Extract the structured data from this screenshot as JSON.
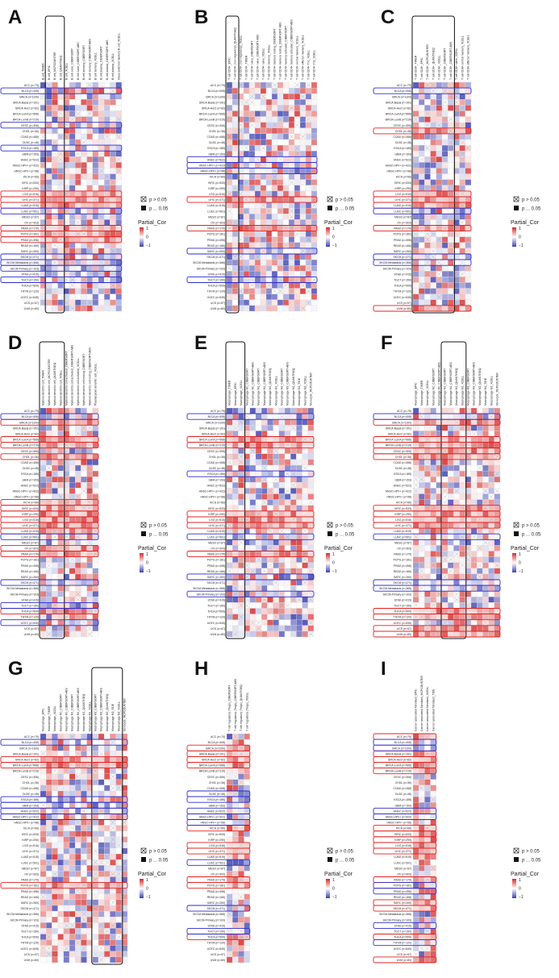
{
  "figure": {
    "panels": [
      "A",
      "B",
      "C",
      "D",
      "E",
      "F",
      "G",
      "H",
      "I"
    ]
  },
  "legend": {
    "ns_label": "p > 0.05",
    "sig_label": "p ... 0.05",
    "title": "Partial_Cor",
    "ticks": [
      "1",
      "0",
      "−1"
    ],
    "low_color": "#3b3fb0",
    "mid_color": "#ffffff",
    "high_color": "#d62828"
  },
  "colors": {
    "red_box": "#e02020",
    "blue_box": "#2a2ad0",
    "black_box": "#111111"
  },
  "chart_data": [
    {
      "panel": "A",
      "type": "heatmap",
      "columns": [
        "B cell_TIMER",
        "B cell_EPIC",
        "B cell_MCPCOUNTER",
        "B cell_QUANTISEQ",
        "B cell_XCELL",
        "B cell naive_CIBERSORT",
        "B cell naive_CIBERSORT-ABS",
        "B cell memory_CIBERSORT",
        "B cell memory_CIBERSORT-ABS",
        "B cell memory_XCELL",
        "B cell plasma_CIBERSORT",
        "B cell plasma_CIBERSORT-ABS",
        "B cell plasma_XCELL",
        "Class-switched memory B cell_XCELL"
      ],
      "rows": [
        "ACC (n=79)",
        "BLCA (n=408)",
        "BRCA (n=1100)",
        "BRCA-Basal (n=191)",
        "BRCA-Her2 (n=82)",
        "BRCA-LumA (n=568)",
        "BRCA-LumB (n=219)",
        "CESC (n=306)",
        "CHOL (n=36)",
        "COAD (n=458)",
        "DLBC (n=48)",
        "ESCA (n=185)",
        "GBM (n=153)",
        "HNSC (n=522)",
        "HNSC-HPV+ (n=422)",
        "HNSC-HPV+ (n=98)",
        "KICH (n=66)",
        "KIRC (n=533)",
        "KIRP (n=290)",
        "LGG (n=516)",
        "LIHC (n=371)",
        "LUAD (n=515)",
        "LUSC (n=501)",
        "MESO (n=87)",
        "OV (n=303)",
        "PAAD (n=179)",
        "PCPG (n=181)",
        "PRAD (n=498)",
        "READ (n=166)",
        "SARC (n=260)",
        "SKCM (n=471)",
        "SKCM-Metastasis (n=368)",
        "SKCM-Primary (n=103)",
        "STAD (n=415)",
        "TGCT (n=150)",
        "THCA (n=509)",
        "THYM (n=120)",
        "UCEC (n=545)",
        "UCS (n=57)",
        "UVM (n=80)"
      ],
      "highlight_cols": [
        1,
        3
      ],
      "red_rows": [
        19,
        20,
        21,
        25,
        26,
        27
      ],
      "blue_rows": [
        1,
        7,
        11,
        22,
        30,
        31,
        32,
        34
      ],
      "seed": 11
    },
    {
      "panel": "B",
      "type": "heatmap",
      "columns": [
        "T cell CD4+_EPIC",
        "T cell CD4+ (non-regulatory)_QUANTISEQ",
        "T cell CD4+ (non-regulatory)_XCELL",
        "T cell CD4+_TIMER",
        "T cell CD4+ naive_CIBERSORT",
        "T cell CD4+ naive_CIBERSORT-ABS",
        "T cell CD4+ naive_XCELL",
        "T cell CD4+ memory_XCELL",
        "T cell CD4+ memory resting_CIBERSORT",
        "T cell CD4+ memory resting_CIBERSORT-ABS",
        "T cell CD4+ memory activated_CIBERSORT",
        "T cell CD4+ memory activated_CIBERSORT-ABS",
        "T cell CD4+ central memory_XCELL",
        "T cell CD4+ effector memory_XCELL",
        "T cell CD4+ Th1_XCELL",
        "T cell CD4+ Th2_XCELL"
      ],
      "rows": [
        "ACC (n=79)",
        "BLCA (n=408)",
        "BRCA (n=1100)",
        "BRCA-Basal (n=191)",
        "BRCA-Her2 (n=82)",
        "BRCA-LumA (n=568)",
        "BRCA-LumB (n=219)",
        "CESC (n=306)",
        "CHOL (n=36)",
        "COAD (n=458)",
        "DLBC (n=48)",
        "ESCA (n=185)",
        "GBM (n=153)",
        "HNSC (n=522)",
        "HNSC-HPV+ (n=422)",
        "HNSC-HPV+ (n=98)",
        "KICH (n=66)",
        "KIRC (n=533)",
        "KIRP (n=290)",
        "LGG (n=516)",
        "LIHC (n=371)",
        "LUAD (n=515)",
        "LUSC (n=501)",
        "MESO (n=87)",
        "OV (n=303)",
        "PAAD (n=179)",
        "PCPG (n=181)",
        "PRAD (n=498)",
        "READ (n=166)",
        "SARC (n=260)",
        "SKCM (n=471)",
        "SKCM-Metastasis (n=368)",
        "SKCM-Primary (n=103)",
        "STAD (n=415)",
        "TGCT (n=150)",
        "THCA (n=509)",
        "THYM (n=120)",
        "UCEC (n=545)",
        "UCS (n=57)",
        "UVM (n=80)"
      ],
      "highlight_cols": [
        0,
        1
      ],
      "red_rows": [
        20,
        25
      ],
      "blue_rows": [
        13,
        14,
        15,
        29,
        34
      ],
      "seed": 23
    },
    {
      "panel": "C",
      "type": "heatmap",
      "columns": [
        "T cell CD8+_TIMER",
        "T cell CD8+_EPIC",
        "T cell CD8+_MCPCOUNTER",
        "T cell CD8+_QUANTISEQ",
        "T cell CD8+_XCELL",
        "T cell CD8+_CIBERSORT",
        "T cell CD8+_CIBERSORT-ABS",
        "T cell CD8+ naive_XCELL",
        "T cell CD8+ central memory_XCELL",
        "T cell CD8+ effector memory_XCELL"
      ],
      "rows": [
        "ACC (n=79)",
        "BLCA (n=408)",
        "BRCA (n=1100)",
        "BRCA-Basal (n=191)",
        "BRCA-Her2 (n=82)",
        "BRCA-LumA (n=568)",
        "BRCA-LumB (n=219)",
        "CESC (n=306)",
        "CHOL (n=36)",
        "COAD (n=458)",
        "DLBC (n=48)",
        "ESCA (n=185)",
        "GBM (n=153)",
        "HNSC (n=522)",
        "HNSC-HPV+ (n=422)",
        "HNSC-HPV+ (n=98)",
        "KICH (n=66)",
        "KIRC (n=533)",
        "KIRP (n=290)",
        "LGG (n=516)",
        "LIHC (n=371)",
        "LUAD (n=515)",
        "LUSC (n=501)",
        "MESO (n=87)",
        "OV (n=303)",
        "PAAD (n=179)",
        "PCPG (n=181)",
        "PRAD (n=498)",
        "READ (n=166)",
        "SARC (n=260)",
        "SKCM (n=471)",
        "SKCM-Metastasis (n=368)",
        "SKCM-Primary (n=103)",
        "STAD (n=415)",
        "TGCT (n=150)",
        "THCA (n=509)",
        "THYM (n=120)",
        "UCEC (n=545)",
        "UCS (n=57)",
        "UVM (n=80)"
      ],
      "highlight_cols": [
        0,
        6
      ],
      "red_rows": [
        8,
        19,
        20,
        21,
        25,
        39
      ],
      "blue_rows": [
        1,
        22,
        30,
        31
      ],
      "seed": 37
    },
    {
      "panel": "D",
      "type": "heatmap",
      "columns": [
        "Myeloid dendritic cell_TIMER",
        "Myeloid dendritic cell_MCPCOUNTER",
        "Myeloid dendritic cell_QUANTISEQ",
        "Myeloid dendritic cell_XCELL",
        "Myeloid dendritic cell activated_CIBERSORT",
        "Myeloid dendritic cell activated_CIBERSORT-ABS",
        "Myeloid dendritic cell activated_XCELL",
        "Myeloid dendritic cell resting_CIBERSORT",
        "Myeloid dendritic cell resting_CIBERSORT-ABS",
        "Plasmacytoid dendritic cell_XCELL"
      ],
      "rows": [
        "ACC (n=79)",
        "BLCA (n=408)",
        "BRCA (n=1100)",
        "BRCA-Basal (n=191)",
        "BRCA-Her2 (n=82)",
        "BRCA-LumA (n=568)",
        "BRCA-LumB (n=219)",
        "CESC (n=306)",
        "CHOL (n=36)",
        "COAD (n=458)",
        "DLBC (n=48)",
        "ESCA (n=185)",
        "GBM (n=153)",
        "HNSC (n=522)",
        "HNSC-HPV+ (n=422)",
        "HNSC-HPV+ (n=98)",
        "KICH (n=66)",
        "KIRC (n=533)",
        "KIRP (n=290)",
        "LGG (n=516)",
        "LIHC (n=371)",
        "LUAD (n=515)",
        "LUSC (n=501)",
        "MESO (n=87)",
        "OV (n=303)",
        "PAAD (n=179)",
        "PCPG (n=181)",
        "PRAD (n=498)",
        "READ (n=166)",
        "SARC (n=260)",
        "SKCM (n=471)",
        "SKCM-Metastasis (n=368)",
        "SKCM-Primary (n=103)",
        "STAD (n=415)",
        "TGCT (n=150)",
        "THCA (n=509)",
        "THYM (n=120)",
        "UCEC (n=545)",
        "UCS (n=57)",
        "UVM (n=80)"
      ],
      "highlight_cols": [
        0,
        3
      ],
      "red_rows": [
        2,
        5,
        6,
        8,
        16,
        17,
        18,
        19,
        20,
        21,
        24,
        25,
        35
      ],
      "blue_rows": [
        1,
        22,
        30,
        34,
        37
      ],
      "seed": 41
    },
    {
      "panel": "E",
      "type": "heatmap",
      "columns": [
        "Macrophage_TIMER",
        "Macrophage_EPIC",
        "Macrophage_XCELL",
        "Macrophage M0_CIBERSORT",
        "Macrophage M0_CIBERSORT-ABS",
        "Macrophage M1_CIBERSORT",
        "Macrophage M1_CIBERSORT-ABS",
        "Macrophage M1_QUANTISEQ",
        "Macrophage M1_XCELL",
        "Macrophage M2_CIBERSORT",
        "Macrophage M2_CIBERSORT-ABS",
        "Macrophage M2_QUANTISEQ",
        "Macrophage M2_TIDE",
        "Macrophage M2_XCELL",
        "Monocyte_MCPCOUNTER"
      ],
      "rows": [
        "ACC (n=79)",
        "BLCA (n=408)",
        "BRCA (n=1100)",
        "BRCA-Basal (n=191)",
        "BRCA-Her2 (n=82)",
        "BRCA-LumA (n=568)",
        "BRCA-LumB (n=219)",
        "CESC (n=306)",
        "CHOL (n=36)",
        "COAD (n=458)",
        "DLBC (n=48)",
        "ESCA (n=185)",
        "GBM (n=153)",
        "HNSC (n=522)",
        "HNSC-HPV+ (n=422)",
        "HNSC-HPV+ (n=98)",
        "KICH (n=66)",
        "KIRC (n=533)",
        "KIRP (n=290)",
        "LGG (n=516)",
        "LIHC (n=371)",
        "LUAD (n=515)",
        "LUSC (n=501)",
        "MESO (n=87)",
        "OV (n=303)",
        "PAAD (n=179)",
        "PCPG (n=181)",
        "PRAD (n=498)",
        "READ (n=166)",
        "SARC (n=260)",
        "SKCM (n=471)",
        "SKCM-Metastasis (n=368)",
        "SKCM-Primary (n=103)",
        "STAD (n=415)",
        "TGCT (n=150)",
        "THCA (n=509)",
        "THYM (n=120)",
        "UCEC (n=545)",
        "UCS (n=57)",
        "UVM (n=80)"
      ],
      "highlight_cols": [
        0,
        2
      ],
      "red_rows": [
        5,
        6,
        18,
        19,
        20,
        25
      ],
      "blue_rows": [
        1,
        11,
        22,
        29,
        32
      ],
      "seed": 53
    },
    {
      "panel": "F",
      "type": "heatmap",
      "columns": [
        "Macrophage_EPIC",
        "Macrophage_TIMER",
        "Macrophage_XCELL",
        "Macrophage M0_CIBERSORT",
        "Macrophage M0_CIBERSORT-ABS",
        "Macrophage M1_CIBERSORT",
        "Macrophage M1_CIBERSORT-ABS",
        "Macrophage M1_QUANTISEQ",
        "Macrophage M1_XCELL",
        "Macrophage M2_CIBERSORT",
        "Macrophage M2_CIBERSORT-ABS",
        "Macrophage M2_QUANTISEQ",
        "Macrophage M2_TIDE",
        "Macrophage M2_XCELL",
        "Monocyte_MCPCOUNTER"
      ],
      "rows": [
        "ACC (n=79)",
        "BLCA (n=408)",
        "BRCA (n=1100)",
        "BRCA-Basal (n=191)",
        "BRCA-Her2 (n=82)",
        "BRCA-LumA (n=568)",
        "BRCA-LumB (n=219)",
        "CESC (n=306)",
        "CHOL (n=36)",
        "COAD (n=458)",
        "DLBC (n=48)",
        "ESCA (n=185)",
        "GBM (n=153)",
        "HNSC (n=522)",
        "HNSC-HPV+ (n=422)",
        "HNSC-HPV+ (n=98)",
        "KICH (n=66)",
        "KIRC (n=533)",
        "KIRP (n=290)",
        "LGG (n=516)",
        "LIHC (n=371)",
        "LUAD (n=515)",
        "LUSC (n=501)",
        "MESO (n=87)",
        "OV (n=303)",
        "PAAD (n=179)",
        "PCPG (n=181)",
        "PRAD (n=498)",
        "READ (n=166)",
        "SARC (n=260)",
        "SKCM (n=471)",
        "SKCM-Metastasis (n=368)",
        "SKCM-Primary (n=103)",
        "STAD (n=415)",
        "TGCT (n=150)",
        "THCA (n=509)",
        "THYM (n=120)",
        "UCEC (n=545)",
        "UCS (n=57)",
        "UVM (n=80)"
      ],
      "highlight_cols": [
        5,
        8
      ],
      "red_rows": [
        2,
        5,
        6,
        7,
        8,
        17,
        18,
        19,
        20,
        35,
        36,
        38,
        39
      ],
      "blue_rows": [
        1,
        22,
        30,
        31
      ],
      "seed": 67
    },
    {
      "panel": "G",
      "type": "heatmap",
      "columns": [
        "Macrophage_EPIC",
        "Macrophage_TIMER",
        "Macrophage_XCELL",
        "Macrophage M0_CIBERSORT",
        "Macrophage M0_CIBERSORT-ABS",
        "Macrophage M1_CIBERSORT",
        "Macrophage M1_CIBERSORT-ABS",
        "Macrophage M1_QUANTISEQ",
        "Macrophage M1_XCELL",
        "Macrophage M2_CIBERSORT",
        "Macrophage M2_CIBERSORT-ABS",
        "Macrophage M2_QUANTISEQ",
        "Macrophage M2_TIDE",
        "Macrophage M2_XCELL",
        "Monocyte_MCPCOUNTER"
      ],
      "rows": [
        "ACC (n=79)",
        "BLCA (n=408)",
        "BRCA (n=1100)",
        "BRCA-Basal (n=191)",
        "BRCA-Her2 (n=82)",
        "BRCA-LumA (n=568)",
        "BRCA-LumB (n=219)",
        "CESC (n=306)",
        "CHOL (n=36)",
        "COAD (n=458)",
        "DLBC (n=48)",
        "ESCA (n=185)",
        "GBM (n=153)",
        "HNSC (n=522)",
        "HNSC-HPV+ (n=422)",
        "HNSC-HPV+ (n=98)",
        "KICH (n=66)",
        "KIRC (n=533)",
        "KIRP (n=290)",
        "LGG (n=516)",
        "LIHC (n=371)",
        "LUAD (n=515)",
        "LUSC (n=501)",
        "MESO (n=87)",
        "OV (n=303)",
        "PAAD (n=179)",
        "PCPG (n=181)",
        "PRAD (n=498)",
        "READ (n=166)",
        "SARC (n=260)",
        "SKCM (n=471)",
        "SKCM-Metastasis (n=368)",
        "SKCM-Primary (n=103)",
        "STAD (n=415)",
        "TGCT (n=150)",
        "THCA (n=509)",
        "THYM (n=120)",
        "UCEC (n=545)",
        "UCS (n=57)",
        "UVM (n=80)"
      ],
      "highlight_cols": [
        9,
        13
      ],
      "red_rows": [
        4,
        5,
        26
      ],
      "blue_rows": [
        1,
        11,
        12,
        13,
        14
      ],
      "seed": 79
    },
    {
      "panel": "H",
      "type": "heatmap",
      "columns": [
        "T cell regulatory (Tregs)_CIBERSORT",
        "T cell regulatory (Tregs)_CIBERSORT-ABS",
        "T cell regulatory (Tregs)_QUANTISEQ",
        "T cell regulatory (Tregs)_XCELL"
      ],
      "rows": [
        "ACC (n=79)",
        "BLCA (n=408)",
        "BRCA (n=1100)",
        "BRCA-Basal (n=191)",
        "BRCA-Her2 (n=82)",
        "BRCA-LumA (n=568)",
        "BRCA-LumB (n=219)",
        "CESC (n=306)",
        "CHOL (n=36)",
        "COAD (n=458)",
        "DLBC (n=48)",
        "ESCA (n=185)",
        "GBM (n=153)",
        "HNSC (n=522)",
        "HNSC-HPV+ (n=422)",
        "HNSC-HPV+ (n=98)",
        "KICH (n=66)",
        "KIRC (n=533)",
        "KIRP (n=290)",
        "LGG (n=516)",
        "LIHC (n=371)",
        "LUAD (n=515)",
        "LUSC (n=501)",
        "MESO (n=87)",
        "OV (n=303)",
        "PAAD (n=179)",
        "PCPG (n=181)",
        "PRAD (n=498)",
        "READ (n=166)",
        "SARC (n=260)",
        "SKCM (n=471)",
        "SKCM-Metastasis (n=368)",
        "SKCM-Primary (n=103)",
        "STAD (n=415)",
        "TGCT (n=150)",
        "THCA (n=509)",
        "THYM (n=120)",
        "UCEC (n=545)",
        "UCS (n=57)",
        "UVM (n=80)"
      ],
      "highlight_cols": [],
      "red_rows": [
        2,
        3,
        4,
        5,
        16,
        19,
        20,
        25,
        26,
        35
      ],
      "blue_rows": [
        10,
        11,
        13,
        14,
        15,
        22,
        30,
        34
      ],
      "seed": 83
    },
    {
      "panel": "I",
      "type": "heatmap",
      "columns": [
        "Cancer associated fibroblast_EPIC",
        "Cancer associated fibroblast_MCPCOUNTER",
        "Cancer associated fibroblast_XCELL",
        "Cancer associated fibroblast_TIDE"
      ],
      "rows": [
        "ACC (n=79)",
        "BLCA (n=408)",
        "BRCA (n=1100)",
        "BRCA-Basal (n=191)",
        "BRCA-Her2 (n=82)",
        "BRCA-LumA (n=568)",
        "BRCA-LumB (n=219)",
        "CESC (n=306)",
        "CHOL (n=36)",
        "COAD (n=458)",
        "DLBC (n=48)",
        "ESCA (n=185)",
        "GBM (n=153)",
        "HNSC (n=522)",
        "HNSC-HPV+ (n=422)",
        "HNSC-HPV+ (n=98)",
        "KICH (n=66)",
        "KIRC (n=533)",
        "KIRP (n=290)",
        "LGG (n=516)",
        "LIHC (n=371)",
        "LUAD (n=515)",
        "LUSC (n=501)",
        "MESO (n=87)",
        "OV (n=303)",
        "PAAD (n=179)",
        "PCPG (n=181)",
        "PRAD (n=498)",
        "READ (n=166)",
        "SARC (n=260)",
        "SKCM (n=471)",
        "SKCM-Metastasis (n=368)",
        "SKCM-Primary (n=103)",
        "STAD (n=415)",
        "TGCT (n=150)",
        "THCA (n=509)",
        "THYM (n=120)",
        "UCEC (n=545)",
        "UCS (n=57)",
        "UVM (n=80)"
      ],
      "highlight_cols": [],
      "red_rows": [
        0,
        3,
        4,
        5,
        6,
        16,
        17,
        18,
        19,
        20,
        25,
        29,
        30,
        35,
        39
      ],
      "blue_rows": [
        1,
        2,
        13,
        14,
        26,
        27,
        33,
        36
      ],
      "seed": 97
    }
  ]
}
